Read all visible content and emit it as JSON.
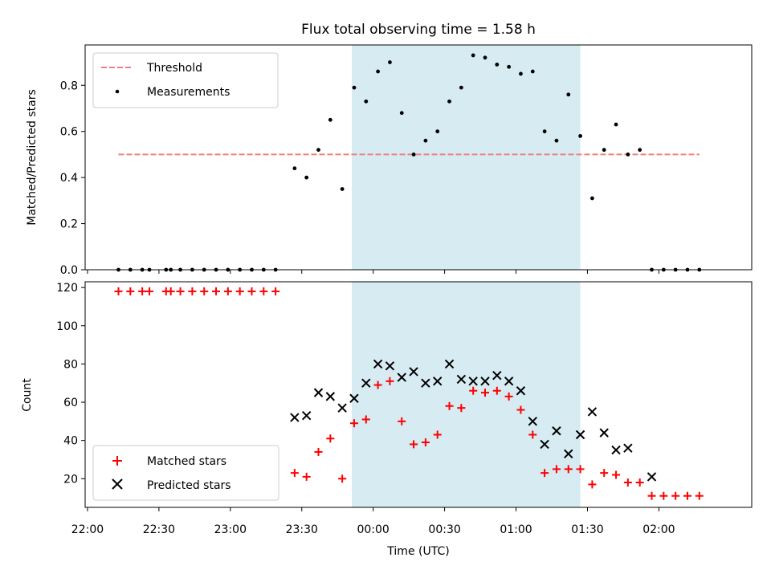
{
  "chart_data": [
    {
      "type": "scatter",
      "title": "Flux total observing time = 1.58 h",
      "xlabel": "",
      "ylabel": "Matched/Predicted stars",
      "xlim": [
        "21:59",
        "02:39"
      ],
      "ylim": [
        0,
        0.975
      ],
      "yticks": [
        "0.0",
        "0.2",
        "0.4",
        "0.6",
        "0.8"
      ],
      "ytick_values": [
        0,
        0.2,
        0.4,
        0.6,
        0.8
      ],
      "shaded_span": [
        "23:51",
        "01:27"
      ],
      "legend_position": "upper left",
      "series": [
        {
          "name": "Threshold",
          "style": "dashed-line",
          "color": "#f08080",
          "x": [
            "22:13",
            "02:17"
          ],
          "y": [
            0.5,
            0.5
          ]
        },
        {
          "name": "Measurements",
          "style": "dot",
          "color": "#000000",
          "x": [
            "22:13",
            "22:18",
            "22:23",
            "22:26",
            "22:33",
            "22:35",
            "22:39",
            "22:44",
            "22:49",
            "22:54",
            "22:59",
            "23:04",
            "23:09",
            "23:14",
            "23:19",
            "23:27",
            "23:32",
            "23:37",
            "23:42",
            "23:47",
            "23:52",
            "23:57",
            "00:02",
            "00:07",
            "00:12",
            "00:17",
            "00:22",
            "00:27",
            "00:32",
            "00:37",
            "00:42",
            "00:47",
            "00:52",
            "00:57",
            "01:02",
            "01:07",
            "01:12",
            "01:17",
            "01:22",
            "01:27",
            "01:32",
            "01:37",
            "01:42",
            "01:47",
            "01:52",
            "01:57",
            "02:02",
            "02:07",
            "02:12",
            "02:17"
          ],
          "y": [
            0,
            0,
            0,
            0,
            0,
            0,
            0,
            0,
            0,
            0,
            0,
            0,
            0,
            0,
            0,
            0.44,
            0.4,
            0.52,
            0.65,
            0.35,
            0.79,
            0.73,
            0.86,
            0.9,
            0.68,
            0.5,
            0.56,
            0.6,
            0.73,
            0.79,
            0.93,
            0.92,
            0.89,
            0.88,
            0.85,
            0.86,
            0.6,
            0.56,
            0.76,
            0.58,
            0.31,
            0.52,
            0.63,
            0.5,
            0.52,
            0,
            0,
            0,
            0,
            0
          ]
        }
      ]
    },
    {
      "type": "scatter",
      "title": "",
      "xlabel": "Time (UTC)",
      "ylabel": "Count",
      "xlim": [
        "21:59",
        "02:39"
      ],
      "ylim": [
        5,
        123
      ],
      "yticks": [
        "20",
        "40",
        "60",
        "80",
        "100",
        "120"
      ],
      "ytick_values": [
        20,
        40,
        60,
        80,
        100,
        120
      ],
      "xticks": [
        "22:00",
        "22:30",
        "23:00",
        "23:30",
        "00:00",
        "00:30",
        "01:00",
        "01:30",
        "02:00"
      ],
      "xtick_values": [
        "22:00",
        "22:30",
        "23:00",
        "23:30",
        "00:00",
        "00:30",
        "01:00",
        "01:30",
        "02:00"
      ],
      "shaded_span": [
        "23:51",
        "01:27"
      ],
      "legend_position": "lower left",
      "series": [
        {
          "name": "Matched stars",
          "marker": "plus",
          "color": "#ff0000",
          "x": [
            "22:13",
            "22:18",
            "22:23",
            "22:26",
            "22:33",
            "22:35",
            "22:39",
            "22:44",
            "22:49",
            "22:54",
            "22:59",
            "23:04",
            "23:09",
            "23:14",
            "23:19",
            "23:27",
            "23:32",
            "23:37",
            "23:42",
            "23:47",
            "23:52",
            "23:57",
            "00:02",
            "00:07",
            "00:12",
            "00:17",
            "00:22",
            "00:27",
            "00:32",
            "00:37",
            "00:42",
            "00:47",
            "00:52",
            "00:57",
            "01:02",
            "01:07",
            "01:12",
            "01:17",
            "01:22",
            "01:27",
            "01:32",
            "01:37",
            "01:42",
            "01:47",
            "01:52",
            "01:57",
            "02:02",
            "02:07",
            "02:12",
            "02:17"
          ],
          "y": [
            118,
            118,
            118,
            118,
            118,
            118,
            118,
            118,
            118,
            118,
            118,
            118,
            118,
            118,
            118,
            23,
            21,
            34,
            41,
            20,
            49,
            51,
            69,
            71,
            50,
            38,
            39,
            43,
            58,
            57,
            66,
            65,
            66,
            63,
            56,
            43,
            23,
            25,
            25,
            25,
            17,
            23,
            22,
            18,
            18,
            11,
            11,
            11,
            11,
            11
          ]
        },
        {
          "name": "Predicted stars",
          "marker": "x",
          "color": "#000000",
          "x": [
            "23:27",
            "23:32",
            "23:37",
            "23:42",
            "23:47",
            "23:52",
            "23:57",
            "00:02",
            "00:07",
            "00:12",
            "00:17",
            "00:22",
            "00:27",
            "00:32",
            "00:37",
            "00:42",
            "00:47",
            "00:52",
            "00:57",
            "01:02",
            "01:07",
            "01:12",
            "01:17",
            "01:22",
            "01:27",
            "01:32",
            "01:37",
            "01:42",
            "01:47",
            "01:57"
          ],
          "y": [
            52,
            53,
            65,
            63,
            57,
            62,
            70,
            80,
            79,
            73,
            76,
            70,
            71,
            80,
            72,
            71,
            71,
            74,
            71,
            66,
            50,
            38,
            45,
            33,
            43,
            55,
            44,
            35,
            36,
            21
          ]
        }
      ]
    }
  ],
  "colors": {
    "shade": "#add8e6",
    "shade_opacity": 0.5
  }
}
